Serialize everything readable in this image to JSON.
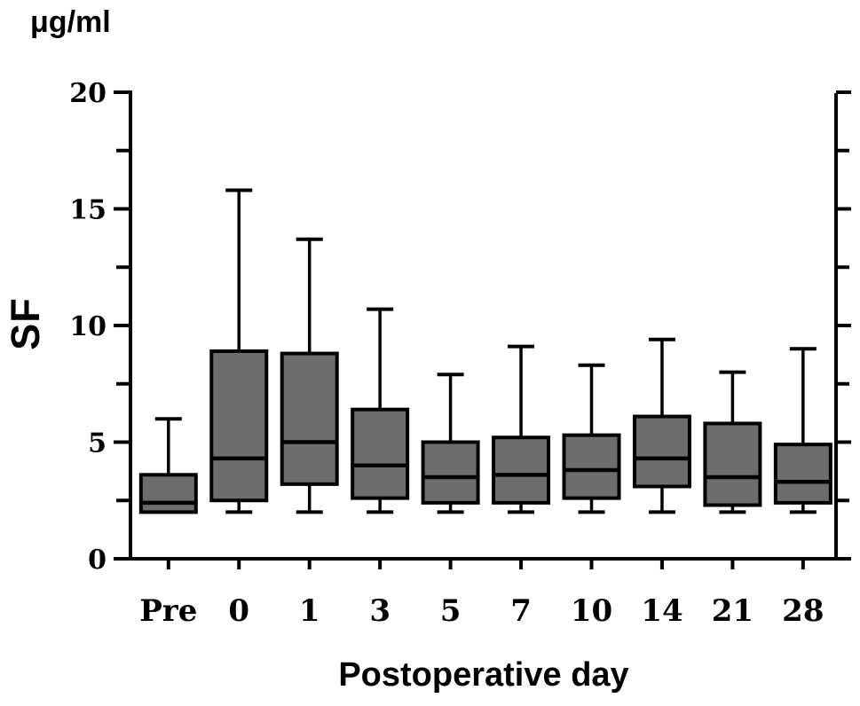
{
  "labels": {
    "unit": "μg/ml",
    "y": "SF",
    "x": "Postoperative day"
  },
  "chart_data": {
    "type": "boxplot",
    "title": "",
    "ylabel": "SF",
    "y_unit": "μg/ml",
    "xlabel": "Postoperative day",
    "ylim": [
      0,
      20
    ],
    "grid": false,
    "legend": "none",
    "y_major_ticks": [
      {
        "value": 0,
        "label": "0"
      },
      {
        "value": 5,
        "label": "5"
      },
      {
        "value": 10,
        "label": "10"
      },
      {
        "value": 15,
        "label": "15"
      },
      {
        "value": 20,
        "label": "20"
      }
    ],
    "y_minor_ticks": [
      2.5,
      7.5,
      12.5,
      17.5
    ],
    "categories": [
      "Pre",
      "0",
      "1",
      "3",
      "5",
      "7",
      "10",
      "14",
      "21",
      "28"
    ],
    "boxes": [
      {
        "category": "Pre",
        "whisker_low": 2.0,
        "q1": 2.0,
        "median": 2.4,
        "q3": 3.6,
        "whisker_high": 6.0
      },
      {
        "category": "0",
        "whisker_low": 2.0,
        "q1": 2.5,
        "median": 4.3,
        "q3": 8.9,
        "whisker_high": 15.8
      },
      {
        "category": "1",
        "whisker_low": 2.0,
        "q1": 3.2,
        "median": 5.0,
        "q3": 8.8,
        "whisker_high": 13.7
      },
      {
        "category": "3",
        "whisker_low": 2.0,
        "q1": 2.6,
        "median": 4.0,
        "q3": 6.4,
        "whisker_high": 10.7
      },
      {
        "category": "5",
        "whisker_low": 2.0,
        "q1": 2.4,
        "median": 3.5,
        "q3": 5.0,
        "whisker_high": 7.9
      },
      {
        "category": "7",
        "whisker_low": 2.0,
        "q1": 2.4,
        "median": 3.6,
        "q3": 5.2,
        "whisker_high": 9.1
      },
      {
        "category": "10",
        "whisker_low": 2.0,
        "q1": 2.6,
        "median": 3.8,
        "q3": 5.3,
        "whisker_high": 8.3
      },
      {
        "category": "14",
        "whisker_low": 2.0,
        "q1": 3.1,
        "median": 4.3,
        "q3": 6.1,
        "whisker_high": 9.4
      },
      {
        "category": "21",
        "whisker_low": 2.0,
        "q1": 2.3,
        "median": 3.5,
        "q3": 5.8,
        "whisker_high": 8.0
      },
      {
        "category": "28",
        "whisker_low": 2.0,
        "q1": 2.4,
        "median": 3.3,
        "q3": 4.9,
        "whisker_high": 9.0
      }
    ],
    "colors": {
      "box_fill": "#6d6d6d",
      "line": "#000000",
      "background": "#ffffff"
    }
  }
}
